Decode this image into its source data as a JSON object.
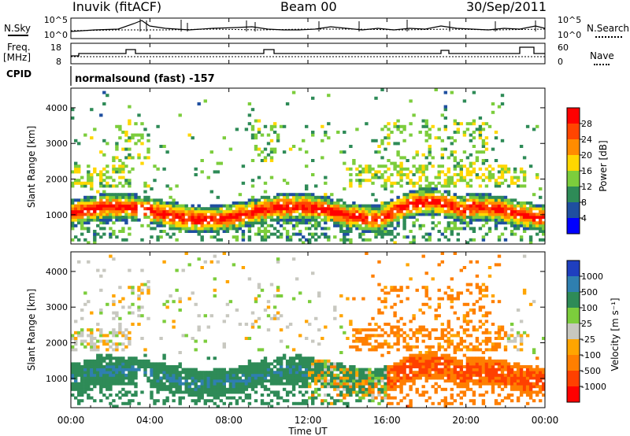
{
  "header": {
    "station": "Inuvik (fitACF)",
    "beam": "Beam 00",
    "date": "30/Sep/2011"
  },
  "top_panels": {
    "nsky_label": "N.Sky",
    "nsky_ticks": [
      "10^5",
      "10^0"
    ],
    "nsearch_label": "N.Search",
    "nsearch_ticks": [
      "10^5",
      "10^0"
    ],
    "freq_label_1": "Freq.",
    "freq_label_2": "[MHz]",
    "freq_ticks": [
      "18",
      "8"
    ],
    "nave_label": "Nave",
    "nave_ticks": [
      "60",
      "0"
    ],
    "cpid_label": "CPID",
    "cpid_value": "normalsound (fast) -157"
  },
  "chart_data": [
    {
      "type": "heatmap",
      "name": "power-panel",
      "ylabel": "Slant Range [km]",
      "yticks": [
        1000,
        2000,
        3000,
        4000
      ],
      "ylim": [
        180,
        4550
      ],
      "xlim": [
        0,
        24
      ],
      "colorbar_label": "Power [dB]",
      "colorbar_ticks": [
        "28",
        "24",
        "20",
        "16",
        "12",
        "8",
        "4"
      ],
      "colorbar_colors": [
        "#ff0000",
        "#ff4500",
        "#ff8c00",
        "#ffd700",
        "#7ccd3c",
        "#2e8b57",
        "#1f4fa0",
        "#0000ff"
      ]
    },
    {
      "type": "heatmap",
      "name": "velocity-panel",
      "ylabel": "Slant Range [km]",
      "yticks": [
        1000,
        2000,
        3000,
        4000
      ],
      "ylim": [
        180,
        4550
      ],
      "xlim": [
        0,
        24
      ],
      "colorbar_label": "Velocity [m s⁻¹]",
      "colorbar_ticks": [
        "1000",
        "500",
        "100",
        "25",
        "-25",
        "-100",
        "-500",
        "-1000"
      ],
      "colorbar_colors": [
        "#1f3fbf",
        "#2f7fb0",
        "#2e8b57",
        "#7ccd3c",
        "#c8c8c0",
        "#ffa500",
        "#ff7f00",
        "#ff4000",
        "#ff0000"
      ]
    }
  ],
  "xaxis": {
    "ticks": [
      "00:00",
      "04:00",
      "08:00",
      "12:00",
      "16:00",
      "20:00",
      "00:00"
    ],
    "label": "Time UT"
  }
}
